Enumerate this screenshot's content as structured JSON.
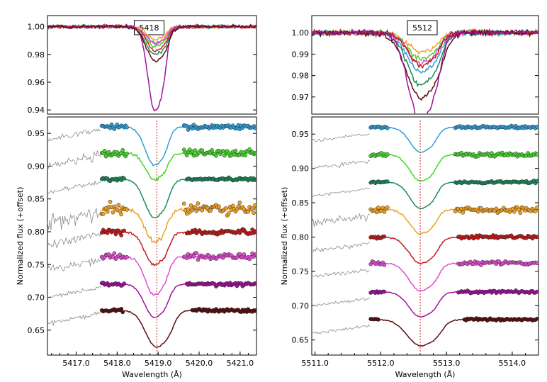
{
  "chart_data": [
    {
      "type": "line",
      "panel": "top",
      "label": "5418",
      "xlim": [
        5416.3,
        5421.4
      ],
      "ylim": [
        0.937,
        1.008
      ],
      "yticks": [
        "1.00",
        "0.98",
        "0.96",
        "0.94"
      ],
      "ytick_values": [
        1.0,
        0.98,
        0.96,
        0.94
      ],
      "series": [
        {
          "name": "blue",
          "color": "#2f9fd8",
          "depth": 0.012,
          "center": 5418.92,
          "width": 0.28
        },
        {
          "name": "green",
          "color": "#44d62c",
          "depth": 0.014,
          "center": 5418.92,
          "width": 0.28
        },
        {
          "name": "teal",
          "color": "#1a8a5a",
          "depth": 0.02,
          "center": 5418.92,
          "width": 0.3
        },
        {
          "name": "orange",
          "color": "#f0a020",
          "depth": 0.009,
          "center": 5418.92,
          "width": 0.26
        },
        {
          "name": "red",
          "color": "#d41e1e",
          "depth": 0.017,
          "center": 5418.92,
          "width": 0.28
        },
        {
          "name": "pink",
          "color": "#f04bc8",
          "depth": 0.012,
          "center": 5418.92,
          "width": 0.27
        },
        {
          "name": "purple",
          "color": "#a0129a",
          "depth": 0.06,
          "center": 5418.92,
          "width": 0.24
        },
        {
          "name": "darkred",
          "color": "#5a0d0d",
          "depth": 0.024,
          "center": 5418.92,
          "width": 0.3
        }
      ]
    },
    {
      "type": "line",
      "panel": "bottom",
      "xlabel": "Wavelength (Å)",
      "ylabel": "Normalized flux (+offset)",
      "xlim": [
        5416.3,
        5421.4
      ],
      "ylim": [
        0.612,
        0.975
      ],
      "xticks": [
        "5417.0",
        "5418.0",
        "5419.0",
        "5420.0",
        "5421.0"
      ],
      "xtick_values": [
        5417.0,
        5418.0,
        5419.0,
        5420.0,
        5421.0
      ],
      "yticks": [
        "0.95",
        "0.90",
        "0.85",
        "0.80",
        "0.75",
        "0.70",
        "0.65"
      ],
      "ytick_values": [
        0.95,
        0.9,
        0.85,
        0.8,
        0.75,
        0.7,
        0.65
      ],
      "reference_line": 5418.97,
      "series": [
        {
          "name": "blue",
          "color": "#2f9fd8",
          "offset": 0.96,
          "depth": 0.058,
          "center": 5418.9,
          "width": 0.3,
          "noise": 0.004
        },
        {
          "name": "green",
          "color": "#44d62c",
          "offset": 0.92,
          "depth": 0.04,
          "center": 5418.9,
          "width": 0.3,
          "noise": 0.007
        },
        {
          "name": "teal",
          "color": "#1a8a5a",
          "offset": 0.88,
          "depth": 0.058,
          "center": 5418.9,
          "width": 0.32,
          "noise": 0.003
        },
        {
          "name": "orange",
          "color": "#f0a020",
          "offset": 0.835,
          "depth": 0.05,
          "center": 5418.9,
          "width": 0.3,
          "noise": 0.012
        },
        {
          "name": "red",
          "color": "#c41a1a",
          "offset": 0.8,
          "depth": 0.05,
          "center": 5418.9,
          "width": 0.32,
          "noise": 0.006
        },
        {
          "name": "pink",
          "color": "#e24bd0",
          "offset": 0.762,
          "depth": 0.058,
          "center": 5418.9,
          "width": 0.3,
          "noise": 0.006
        },
        {
          "name": "purple",
          "color": "#a0129a",
          "offset": 0.72,
          "depth": 0.05,
          "center": 5418.9,
          "width": 0.32,
          "noise": 0.003
        },
        {
          "name": "darkred",
          "color": "#5a0d0d",
          "offset": 0.68,
          "depth": 0.055,
          "center": 5418.95,
          "width": 0.36,
          "noise": 0.003
        }
      ]
    },
    {
      "type": "line",
      "panel": "top",
      "label": "5512",
      "xlim": [
        5510.95,
        5514.4
      ],
      "ylim": [
        0.962,
        1.008
      ],
      "yticks": [
        "1.00",
        "0.99",
        "0.98",
        "0.97"
      ],
      "ytick_values": [
        1.0,
        0.99,
        0.98,
        0.97
      ],
      "series": [
        {
          "name": "orange",
          "color": "#f0a020",
          "depth": 0.009,
          "center": 5512.6,
          "width": 0.26
        },
        {
          "name": "green",
          "color": "#44d62c",
          "depth": 0.012,
          "center": 5512.6,
          "width": 0.26
        },
        {
          "name": "blue",
          "color": "#2f9fd8",
          "depth": 0.018,
          "center": 5512.6,
          "width": 0.28
        },
        {
          "name": "pink",
          "color": "#e24bd0",
          "depth": 0.014,
          "center": 5512.6,
          "width": 0.26
        },
        {
          "name": "teal",
          "color": "#1a8a5a",
          "depth": 0.024,
          "center": 5512.6,
          "width": 0.28
        },
        {
          "name": "red",
          "color": "#c41a1a",
          "depth": 0.015,
          "center": 5512.6,
          "width": 0.26
        },
        {
          "name": "darkred",
          "color": "#5a0d0d",
          "depth": 0.03,
          "center": 5512.6,
          "width": 0.3
        },
        {
          "name": "purple",
          "color": "#a0129a",
          "depth": 0.04,
          "center": 5512.6,
          "width": 0.26
        }
      ]
    },
    {
      "type": "line",
      "panel": "bottom",
      "xlabel": "Wavelength (Å)",
      "ylabel": "Normalized flux (+offset)",
      "xlim": [
        5510.95,
        5514.4
      ],
      "ylim": [
        0.628,
        0.975
      ],
      "xticks": [
        "5511.0",
        "5512.0",
        "5513.0",
        "5514.0"
      ],
      "xtick_values": [
        5511.0,
        5512.0,
        5513.0,
        5514.0
      ],
      "yticks": [
        "0.95",
        "0.90",
        "0.85",
        "0.80",
        "0.75",
        "0.70",
        "0.65"
      ],
      "ytick_values": [
        0.95,
        0.9,
        0.85,
        0.8,
        0.75,
        0.7,
        0.65
      ],
      "reference_line": 5512.6,
      "series": [
        {
          "name": "blue",
          "color": "#2f9fd8",
          "offset": 0.96,
          "depth": 0.036,
          "center": 5512.6,
          "width": 0.22,
          "noise": 0.002
        },
        {
          "name": "green",
          "color": "#44d62c",
          "offset": 0.92,
          "depth": 0.038,
          "center": 5512.6,
          "width": 0.22,
          "noise": 0.003
        },
        {
          "name": "teal",
          "color": "#1a8a5a",
          "offset": 0.88,
          "depth": 0.038,
          "center": 5512.6,
          "width": 0.22,
          "noise": 0.002
        },
        {
          "name": "orange",
          "color": "#f0a020",
          "offset": 0.84,
          "depth": 0.035,
          "center": 5512.6,
          "width": 0.22,
          "noise": 0.006
        },
        {
          "name": "red",
          "color": "#c41a1a",
          "offset": 0.8,
          "depth": 0.038,
          "center": 5512.6,
          "width": 0.24,
          "noise": 0.003
        },
        {
          "name": "pink",
          "color": "#e24bd0",
          "offset": 0.762,
          "depth": 0.04,
          "center": 5512.6,
          "width": 0.24,
          "noise": 0.003
        },
        {
          "name": "purple",
          "color": "#a0129a",
          "offset": 0.72,
          "depth": 0.036,
          "center": 5512.6,
          "width": 0.24,
          "noise": 0.002
        },
        {
          "name": "darkred",
          "color": "#5a0d0d",
          "offset": 0.68,
          "depth": 0.038,
          "center": 5512.6,
          "width": 0.28,
          "noise": 0.002
        }
      ]
    }
  ],
  "colors": {
    "reference_line": "#d41e1e",
    "gray_spectrum": "#8a8a8a"
  }
}
